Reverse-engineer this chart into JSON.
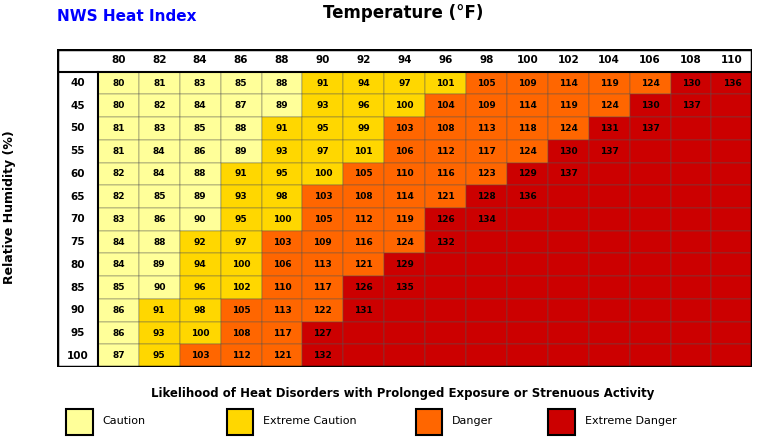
{
  "title_left": "NWS Heat Index",
  "title_center": "Temperature (°F)",
  "ylabel": "Relative Humidity (%)",
  "xlabel": "Likelihood of Heat Disorders with Prolonged Exposure or Strenuous Activity",
  "temp_labels": [
    80,
    82,
    84,
    86,
    88,
    90,
    92,
    94,
    96,
    98,
    100,
    102,
    104,
    106,
    108,
    110
  ],
  "humidity_labels": [
    40,
    45,
    50,
    55,
    60,
    65,
    70,
    75,
    80,
    85,
    90,
    95,
    100
  ],
  "heat_index": [
    [
      80,
      81,
      83,
      85,
      88,
      91,
      94,
      97,
      101,
      105,
      109,
      114,
      119,
      124,
      130,
      136
    ],
    [
      80,
      82,
      84,
      87,
      89,
      93,
      96,
      100,
      104,
      109,
      114,
      119,
      124,
      130,
      137,
      null
    ],
    [
      81,
      83,
      85,
      88,
      91,
      95,
      99,
      103,
      108,
      113,
      118,
      124,
      131,
      137,
      null,
      null
    ],
    [
      81,
      84,
      86,
      89,
      93,
      97,
      101,
      106,
      112,
      117,
      124,
      130,
      137,
      null,
      null,
      null
    ],
    [
      82,
      84,
      88,
      91,
      95,
      100,
      105,
      110,
      116,
      123,
      129,
      137,
      null,
      null,
      null,
      null
    ],
    [
      82,
      85,
      89,
      93,
      98,
      103,
      108,
      114,
      121,
      128,
      136,
      null,
      null,
      null,
      null,
      null
    ],
    [
      83,
      86,
      90,
      95,
      100,
      105,
      112,
      119,
      126,
      134,
      null,
      null,
      null,
      null,
      null,
      null
    ],
    [
      84,
      88,
      92,
      97,
      103,
      109,
      116,
      124,
      132,
      null,
      null,
      null,
      null,
      null,
      null,
      null
    ],
    [
      84,
      89,
      94,
      100,
      106,
      113,
      121,
      129,
      null,
      null,
      null,
      null,
      null,
      null,
      null,
      null
    ],
    [
      85,
      90,
      96,
      102,
      110,
      117,
      126,
      135,
      null,
      null,
      null,
      null,
      null,
      null,
      null,
      null
    ],
    [
      86,
      91,
      98,
      105,
      113,
      122,
      131,
      null,
      null,
      null,
      null,
      null,
      null,
      null,
      null,
      null
    ],
    [
      86,
      93,
      100,
      108,
      117,
      127,
      null,
      null,
      null,
      null,
      null,
      null,
      null,
      null,
      null,
      null
    ],
    [
      87,
      95,
      103,
      112,
      121,
      132,
      null,
      null,
      null,
      null,
      null,
      null,
      null,
      null,
      null,
      null
    ]
  ],
  "caution_color": "#FFFF99",
  "extreme_caution_color": "#FFD700",
  "danger_color": "#FF6600",
  "extreme_danger_color": "#CC0000",
  "empty_color": "#CC0000",
  "bg_color": "#CC0000",
  "legend_items": [
    {
      "label": "Caution",
      "color": "#FFFF99"
    },
    {
      "label": "Extreme Caution",
      "color": "#FFD700"
    },
    {
      "label": "Danger",
      "color": "#FF6600"
    },
    {
      "label": "Extreme Danger",
      "color": "#CC0000"
    }
  ]
}
